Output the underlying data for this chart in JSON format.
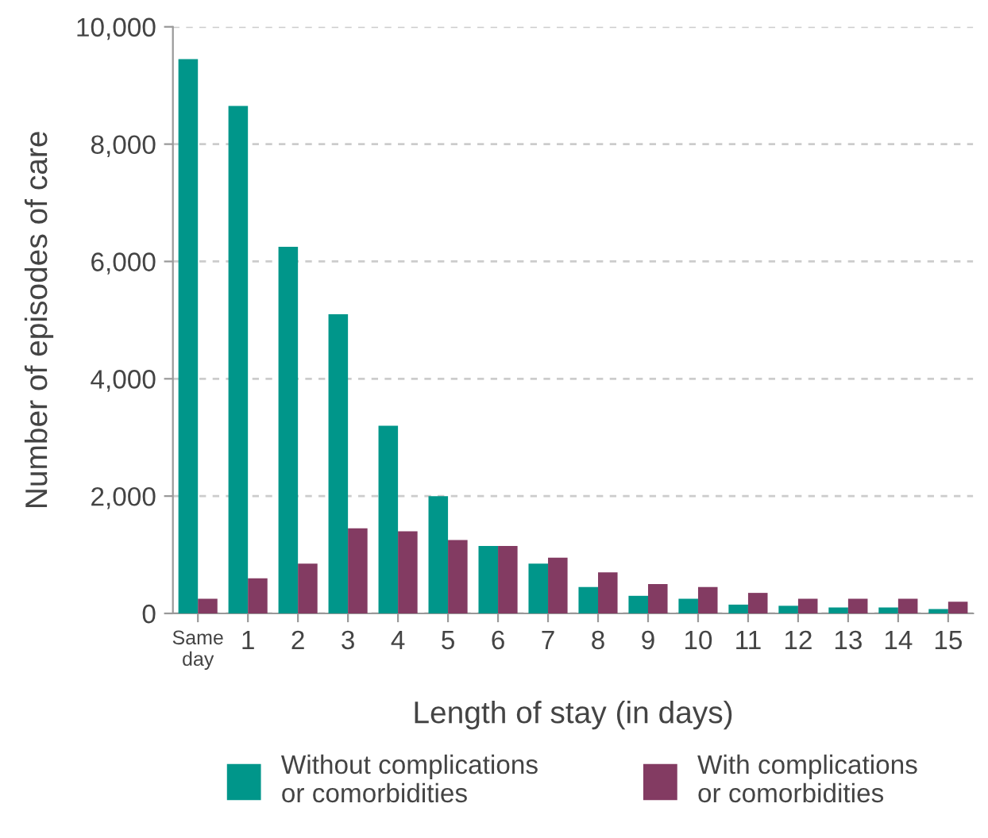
{
  "chart_data": {
    "type": "bar",
    "xlabel": "Length of stay (in days)",
    "ylabel": "Number of episodes of care",
    "categories": [
      "Same\nday",
      "1",
      "2",
      "3",
      "4",
      "5",
      "6",
      "7",
      "8",
      "9",
      "10",
      "11",
      "12",
      "13",
      "14",
      "15"
    ],
    "series": [
      {
        "name": "Without complications\nor comorbidities",
        "color": "#00968a",
        "values": [
          9450,
          8650,
          6250,
          5100,
          3200,
          2000,
          1150,
          850,
          450,
          300,
          250,
          150,
          130,
          100,
          100,
          75
        ]
      },
      {
        "name": "With complications\nor comorbidities",
        "color": "#833b62",
        "values": [
          250,
          600,
          850,
          1450,
          1400,
          1250,
          1150,
          950,
          700,
          500,
          450,
          350,
          250,
          250,
          250,
          200
        ]
      }
    ],
    "ylim": [
      0,
      10000
    ],
    "yticks": [
      {
        "value": 0,
        "label": "0"
      },
      {
        "value": 2000,
        "label": "2,000"
      },
      {
        "value": 4000,
        "label": "4,000"
      },
      {
        "value": 6000,
        "label": "6,000"
      },
      {
        "value": 8000,
        "label": "8,000"
      },
      {
        "value": 10000,
        "label": "10,000"
      }
    ],
    "grid": "y",
    "legend": "bottom"
  }
}
